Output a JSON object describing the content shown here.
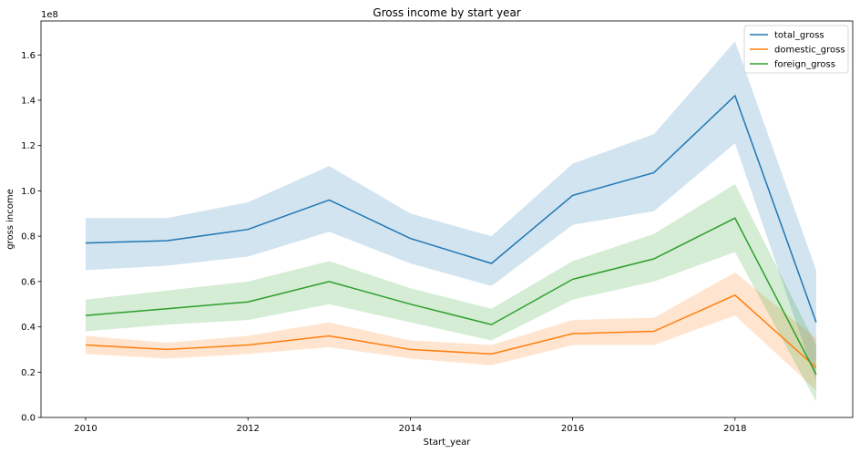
{
  "chart_data": {
    "type": "line",
    "title": "Gross income by start year",
    "xlabel": "Start_year",
    "ylabel": "gross income",
    "y_offset_label": "1e8",
    "y_scale": 100000000,
    "xlim": [
      2009.45,
      2019.45
    ],
    "ylim": [
      0,
      1.75
    ],
    "x_ticks": [
      2010,
      2012,
      2014,
      2016,
      2018
    ],
    "y_ticks": [
      0.0,
      0.2,
      0.4,
      0.6,
      0.8,
      1.0,
      1.2,
      1.4,
      1.6
    ],
    "y_tick_labels": [
      "0.0",
      "0.2",
      "0.4",
      "0.6",
      "0.8",
      "1.0",
      "1.2",
      "1.4",
      "1.6"
    ],
    "grid": false,
    "legend_position": "top-right",
    "x": [
      2010,
      2011,
      2012,
      2013,
      2014,
      2015,
      2016,
      2017,
      2018,
      2019
    ],
    "series": [
      {
        "name": "total_gross",
        "color": "#1f77b4",
        "values": [
          0.77,
          0.78,
          0.83,
          0.96,
          0.79,
          0.68,
          0.98,
          1.08,
          1.42,
          0.42
        ],
        "ci_low": [
          0.65,
          0.67,
          0.71,
          0.82,
          0.68,
          0.58,
          0.85,
          0.91,
          1.21,
          0.16
        ],
        "ci_high": [
          0.88,
          0.88,
          0.95,
          1.11,
          0.9,
          0.8,
          1.12,
          1.25,
          1.66,
          0.65
        ]
      },
      {
        "name": "domestic_gross",
        "color": "#ff7f0e",
        "values": [
          0.32,
          0.3,
          0.32,
          0.36,
          0.3,
          0.28,
          0.37,
          0.38,
          0.54,
          0.22
        ],
        "ci_low": [
          0.28,
          0.26,
          0.28,
          0.31,
          0.26,
          0.23,
          0.32,
          0.32,
          0.45,
          0.12
        ],
        "ci_high": [
          0.36,
          0.33,
          0.36,
          0.42,
          0.34,
          0.32,
          0.43,
          0.44,
          0.64,
          0.35
        ]
      },
      {
        "name": "foreign_gross",
        "color": "#2ca02c",
        "values": [
          0.45,
          0.48,
          0.51,
          0.6,
          0.5,
          0.41,
          0.61,
          0.7,
          0.88,
          0.19
        ],
        "ci_low": [
          0.38,
          0.41,
          0.43,
          0.5,
          0.42,
          0.34,
          0.52,
          0.6,
          0.73,
          0.07
        ],
        "ci_high": [
          0.52,
          0.56,
          0.6,
          0.69,
          0.57,
          0.48,
          0.69,
          0.81,
          1.03,
          0.32
        ]
      }
    ]
  }
}
